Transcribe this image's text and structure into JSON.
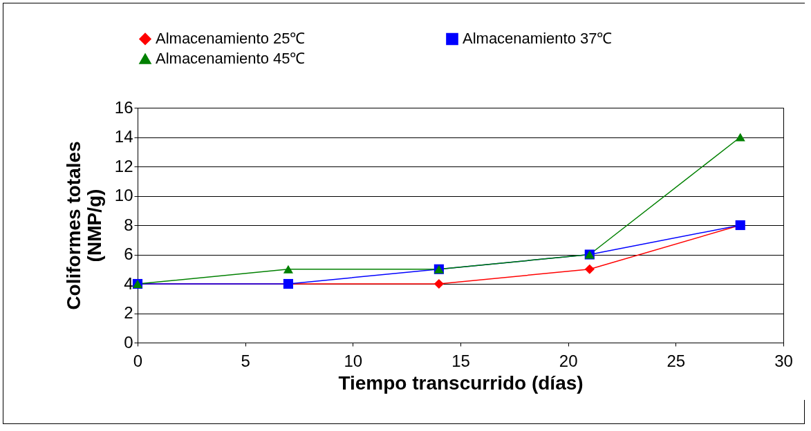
{
  "chart_data": {
    "type": "line",
    "xlabel": "Tiempo transcurrido (días)",
    "ylabel": "Coliformes totales (NMP/g)",
    "x": [
      0,
      7,
      14,
      21,
      28
    ],
    "series": [
      {
        "name": "Almacenamiento 25℃",
        "color": "#ff0000",
        "marker": "diamond",
        "values": [
          4,
          4,
          4,
          5,
          8
        ]
      },
      {
        "name": "Almacenamiento 37℃",
        "color": "#0000ff",
        "marker": "square",
        "values": [
          4,
          4,
          5,
          6,
          8
        ]
      },
      {
        "name": "Almacenamiento 45℃",
        "color": "#008000",
        "marker": "triangle",
        "values": [
          4,
          5,
          5,
          6,
          14
        ]
      }
    ],
    "xlim": [
      0,
      30
    ],
    "xticks": [
      0,
      5,
      10,
      15,
      20,
      25,
      30
    ],
    "ylim": [
      0,
      16
    ],
    "yticks": [
      0,
      2,
      4,
      6,
      8,
      10,
      12,
      14,
      16
    ],
    "grid": "y",
    "legend": "top"
  }
}
